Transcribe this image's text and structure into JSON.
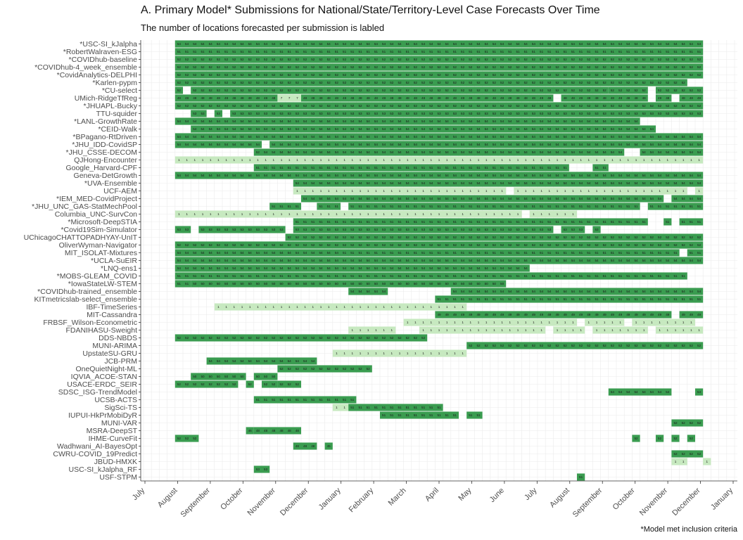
{
  "chart_data": {
    "type": "heatmap",
    "title": "A. Primary Model* Submissions for National/State/Territory-Level Case Forecasts Over Time",
    "subtitle": "The number of locations forecasted per submission is labled",
    "footnote": "*Model met inclusion criteria",
    "x_ticks": [
      "July",
      "August",
      "September",
      "October",
      "November",
      "December",
      "January",
      "February",
      "March",
      "April",
      "May",
      "June",
      "July",
      "August",
      "September",
      "October",
      "November",
      "December",
      "January"
    ],
    "x_range_weeks": [
      0,
      75
    ],
    "colors": {
      "dark": "#3a9c50",
      "light": "#c7e9c0",
      "grid": "#ebebeb",
      "axis": "#333333",
      "cell_text": "#1a1a1a"
    },
    "models": [
      {
        "name": "*USC-SI_kJalpha",
        "runs": [
          [
            4,
            71,
            "dark",
            "54"
          ]
        ]
      },
      {
        "name": "*RobertWalraven-ESG",
        "runs": [
          [
            4,
            71,
            "dark",
            "51"
          ]
        ]
      },
      {
        "name": "*COVIDhub-baseline",
        "runs": [
          [
            4,
            71,
            "dark",
            "52"
          ]
        ]
      },
      {
        "name": "*COVIDhub-4_week_ensemble",
        "runs": [
          [
            4,
            71,
            "dark",
            "52"
          ]
        ]
      },
      {
        "name": "*CovidAnalytics-DELPHI",
        "runs": [
          [
            4,
            71,
            "dark",
            "52"
          ]
        ]
      },
      {
        "name": "*Karlen-pypm",
        "runs": [
          [
            4,
            69,
            "dark",
            "52"
          ]
        ]
      },
      {
        "name": "*CU-select",
        "runs": [
          [
            4,
            5,
            "dark",
            "52"
          ],
          [
            6,
            59,
            "dark",
            "52"
          ],
          [
            59,
            64,
            "dark",
            "52"
          ],
          [
            65,
            71,
            "dark",
            "52"
          ]
        ]
      },
      {
        "name": "UMich-RidgeTfReg",
        "runs": [
          [
            4,
            17,
            "dark",
            "48"
          ],
          [
            17,
            20,
            "light",
            "7"
          ],
          [
            20,
            52,
            "dark",
            "48"
          ],
          [
            53,
            64,
            "dark",
            "48"
          ],
          [
            65,
            67,
            "dark",
            "48"
          ],
          [
            68,
            71,
            "dark",
            "48"
          ]
        ]
      },
      {
        "name": "*JHUAPL-Bucky",
        "runs": [
          [
            4,
            71,
            "dark",
            "52"
          ]
        ]
      },
      {
        "name": "TTU-squider",
        "runs": [
          [
            6,
            8,
            "dark",
            "53"
          ],
          [
            9,
            10,
            "dark",
            "53"
          ],
          [
            11,
            71,
            "dark",
            "53"
          ]
        ]
      },
      {
        "name": "*LANL-GrowthRate",
        "runs": [
          [
            4,
            63,
            "dark",
            "54"
          ]
        ]
      },
      {
        "name": "*CEID-Walk",
        "runs": [
          [
            6,
            65,
            "dark",
            "54"
          ]
        ]
      },
      {
        "name": "*BPagano-RtDriven",
        "runs": [
          [
            4,
            12,
            "dark",
            "54"
          ],
          [
            12,
            71,
            "dark",
            "54"
          ]
        ]
      },
      {
        "name": "*JHU_IDD-CovidSP",
        "runs": [
          [
            4,
            15,
            "dark",
            "54"
          ],
          [
            16,
            71,
            "dark",
            "54"
          ]
        ]
      },
      {
        "name": "*JHU_CSSE-DECOM",
        "runs": [
          [
            14,
            15,
            "dark",
            "52"
          ],
          [
            15,
            61,
            "dark",
            "54"
          ],
          [
            63,
            71,
            "dark",
            "54"
          ]
        ]
      },
      {
        "name": "QJHong-Encounter",
        "runs": [
          [
            4,
            35,
            "light",
            "1"
          ],
          [
            35,
            71,
            "light",
            "1"
          ]
        ]
      },
      {
        "name": "Google_Harvard-CPF",
        "runs": [
          [
            14,
            16,
            "dark",
            "51"
          ],
          [
            16,
            54,
            "dark",
            "51"
          ],
          [
            57,
            59,
            "dark",
            "51"
          ]
        ]
      },
      {
        "name": "Geneva-DetGrowth",
        "runs": [
          [
            4,
            71,
            "dark",
            "54"
          ]
        ]
      },
      {
        "name": "*UVA-Ensemble",
        "runs": [
          [
            19,
            71,
            "dark",
            "54"
          ]
        ]
      },
      {
        "name": "UCF-AEM",
        "runs": [
          [
            19,
            46,
            "light",
            "1"
          ],
          [
            47,
            69,
            "light",
            "1"
          ],
          [
            70,
            71,
            "light",
            "1"
          ]
        ]
      },
      {
        "name": "*IEM_MED-CovidProject",
        "runs": [
          [
            20,
            66,
            "dark",
            "54"
          ],
          [
            67,
            71,
            "dark",
            "54"
          ]
        ]
      },
      {
        "name": "*JHU_UNC_GAS-StatMechPool",
        "runs": [
          [
            16,
            20,
            "dark",
            "51"
          ],
          [
            22,
            25,
            "dark",
            "51"
          ],
          [
            26,
            63,
            "dark",
            "51"
          ],
          [
            64,
            71,
            "dark",
            "51"
          ]
        ]
      },
      {
        "name": "Columbia_UNC-SurvCon",
        "runs": [
          [
            4,
            48,
            "light",
            "1"
          ],
          [
            49,
            55,
            "light",
            "1"
          ]
        ]
      },
      {
        "name": "*Microsoft-DeepSTIA",
        "runs": [
          [
            19,
            64,
            "dark",
            "51"
          ],
          [
            66,
            67,
            "dark",
            "51"
          ],
          [
            68,
            71,
            "dark",
            "51"
          ]
        ]
      },
      {
        "name": "*Covid19Sim-Simulator",
        "runs": [
          [
            4,
            6,
            "dark",
            "53"
          ],
          [
            7,
            18,
            "dark",
            "53"
          ],
          [
            19,
            52,
            "dark",
            "53"
          ],
          [
            53,
            56,
            "dark",
            "53"
          ],
          [
            57,
            58,
            "dark",
            "53"
          ]
        ]
      },
      {
        "name": "UChicagoCHATTOPADHYAY-UnIT",
        "runs": [
          [
            18,
            71,
            "dark",
            "52"
          ]
        ]
      },
      {
        "name": "OliverWyman-Navigator",
        "runs": [
          [
            4,
            10,
            "dark",
            "52"
          ],
          [
            10,
            71,
            "dark",
            "52"
          ]
        ]
      },
      {
        "name": "MIT_ISOLAT-Mixtures",
        "runs": [
          [
            4,
            25,
            "dark",
            "54"
          ],
          [
            25,
            68,
            "dark",
            "51"
          ],
          [
            69,
            71,
            "dark",
            "51"
          ]
        ]
      },
      {
        "name": "*UCLA-SuEIR",
        "runs": [
          [
            4,
            71,
            "dark",
            "54"
          ]
        ]
      },
      {
        "name": "*LNQ-ens1",
        "runs": [
          [
            4,
            49,
            "dark",
            "54"
          ]
        ]
      },
      {
        "name": "*MOBS-GLEAM_COVID",
        "runs": [
          [
            4,
            69,
            "dark",
            "51"
          ]
        ]
      },
      {
        "name": "*IowaStateLW-STEM",
        "runs": [
          [
            4,
            6,
            "dark",
            "51"
          ],
          [
            6,
            46,
            "dark",
            "50"
          ]
        ]
      },
      {
        "name": "*COVIDhub-trained_ensemble",
        "runs": [
          [
            26,
            31,
            "dark",
            "54"
          ],
          [
            39,
            71,
            "dark",
            "54"
          ]
        ]
      },
      {
        "name": "KITmetricslab-select_ensemble",
        "runs": [
          [
            37,
            71,
            "dark",
            "51"
          ]
        ]
      },
      {
        "name": "IBF-TimeSeries",
        "runs": [
          [
            9,
            12,
            "light",
            "1"
          ],
          [
            12,
            41,
            "light",
            "1"
          ]
        ]
      },
      {
        "name": "MIT-Cassandra",
        "runs": [
          [
            37,
            67,
            "dark",
            "49"
          ],
          [
            68,
            71,
            "dark",
            "49"
          ]
        ]
      },
      {
        "name": "FRBSF_Wilson-Econometric",
        "runs": [
          [
            33,
            55,
            "light",
            "1"
          ],
          [
            56,
            61,
            "light",
            "1"
          ],
          [
            62,
            70,
            "light",
            "1"
          ]
        ]
      },
      {
        "name": "FDANIHASU-Sweight",
        "runs": [
          [
            26,
            32,
            "light",
            "1"
          ],
          [
            35,
            51,
            "light",
            "1"
          ],
          [
            52,
            56,
            "light",
            "1"
          ],
          [
            57,
            64,
            "light",
            "1"
          ],
          [
            65,
            71,
            "light",
            "1"
          ]
        ]
      },
      {
        "name": "DDS-NBDS",
        "runs": [
          [
            4,
            30,
            "dark",
            "52"
          ],
          [
            30,
            36,
            "dark",
            "52"
          ]
        ]
      },
      {
        "name": "MUNI-ARIMA",
        "runs": [
          [
            41,
            71,
            "dark",
            "52"
          ]
        ]
      },
      {
        "name": "UpstateSU-GRU",
        "runs": [
          [
            24,
            41,
            "light",
            "1"
          ]
        ]
      },
      {
        "name": "JCB-PRM",
        "runs": [
          [
            8,
            22,
            "dark",
            "54"
          ]
        ]
      },
      {
        "name": "OneQuietNight-ML",
        "runs": [
          [
            17,
            29,
            "dark",
            "52"
          ]
        ]
      },
      {
        "name": "IQVIA_ACOE-STAN",
        "runs": [
          [
            6,
            13,
            "dark",
            "50"
          ],
          [
            14,
            17,
            "dark",
            "50"
          ]
        ]
      },
      {
        "name": "USACE-ERDC_SEIR",
        "runs": [
          [
            4,
            12,
            "dark",
            "52"
          ],
          [
            13,
            14,
            "dark",
            "52"
          ],
          [
            15,
            17,
            "dark",
            "52"
          ],
          [
            17,
            20,
            "dark",
            "52"
          ]
        ]
      },
      {
        "name": "SDSC_ISG-TrendModel",
        "runs": [
          [
            59,
            67,
            "dark",
            "54"
          ],
          [
            70,
            71,
            "dark",
            "54"
          ]
        ]
      },
      {
        "name": "UCSB-ACTS",
        "runs": [
          [
            14,
            27,
            "dark",
            "51"
          ]
        ]
      },
      {
        "name": "SigSci-TS",
        "runs": [
          [
            24,
            26,
            "light",
            "1"
          ],
          [
            26,
            38,
            "dark",
            "51"
          ]
        ]
      },
      {
        "name": "IUPUI-HkPrMobiDyR",
        "runs": [
          [
            30,
            40,
            "dark",
            "51"
          ],
          [
            41,
            43,
            "dark",
            "51"
          ]
        ]
      },
      {
        "name": "MUNI-VAR",
        "runs": [
          [
            67,
            71,
            "dark",
            "52"
          ]
        ]
      },
      {
        "name": "MSRA-DeepST",
        "runs": [
          [
            13,
            14,
            "dark",
            "46"
          ],
          [
            14,
            20,
            "dark",
            "48"
          ]
        ]
      },
      {
        "name": "IHME-CurveFit",
        "runs": [
          [
            4,
            7,
            "dark",
            "52"
          ],
          [
            62,
            63,
            "dark",
            "52"
          ],
          [
            65,
            66,
            "dark",
            "52"
          ],
          [
            67,
            68,
            "dark",
            "52"
          ],
          [
            69,
            70,
            "dark",
            "52"
          ]
        ]
      },
      {
        "name": "Wadhwani_AI-BayesOpt",
        "runs": [
          [
            19,
            22,
            "dark",
            "48"
          ],
          [
            23,
            24,
            "dark",
            "45"
          ]
        ]
      },
      {
        "name": "CWRU-COVID_19Predict",
        "runs": [
          [
            67,
            70,
            "dark",
            "52"
          ],
          [
            70,
            71,
            "dark",
            "52"
          ]
        ]
      },
      {
        "name": "JBUD-HMXK",
        "runs": [
          [
            67,
            69,
            "light",
            "1"
          ],
          [
            71,
            72,
            "light",
            "1"
          ]
        ]
      },
      {
        "name": "USC-SI_kJalpha_RF",
        "runs": [
          [
            14,
            16,
            "dark",
            "53"
          ]
        ]
      },
      {
        "name": "USF-STPM",
        "runs": [
          [
            55,
            56,
            "dark",
            "51"
          ]
        ]
      }
    ]
  }
}
